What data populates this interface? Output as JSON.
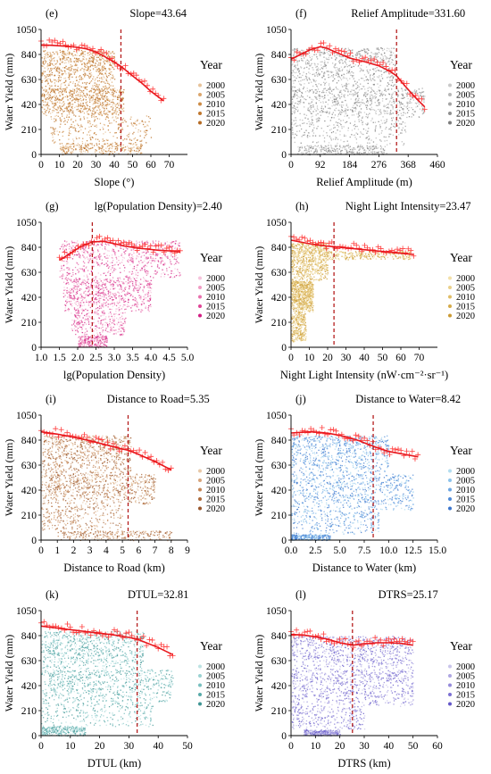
{
  "chart_data": [
    {
      "type": "scatter",
      "panel_label": "(e)",
      "title": "Slope=43.64",
      "xlabel": "Slope (°)",
      "ylabel": "Water Yield (mm)",
      "legend_title": "Year",
      "legend_items": [
        "2000",
        "2005",
        "2010",
        "2015",
        "2020"
      ],
      "legend_colors": [
        "#e7c39a",
        "#dba66c",
        "#cc8b45",
        "#c0772e",
        "#b56a22"
      ],
      "xlim": [
        0,
        80
      ],
      "ylim": [
        0,
        1050
      ],
      "xticks": [
        "0",
        "10",
        "20",
        "30",
        "40",
        "50",
        "60",
        "70"
      ],
      "xtick_values": [
        0,
        10,
        20,
        30,
        40,
        50,
        60,
        70
      ],
      "yticks": [
        "0",
        "210",
        "420",
        "630",
        "840",
        "1050"
      ],
      "threshold": 43.64,
      "fit_x": [
        0,
        5,
        10,
        15,
        20,
        25,
        30,
        35,
        40,
        43.64,
        50,
        55,
        60,
        67
      ],
      "fit_y": [
        920,
        917,
        913,
        908,
        900,
        886,
        860,
        820,
        775,
        740,
        660,
        600,
        530,
        450
      ],
      "cloud": [
        {
          "x": [
            0,
            40
          ],
          "y": [
            560,
            880
          ]
        },
        {
          "x": [
            0,
            45
          ],
          "y": [
            330,
            560
          ]
        },
        {
          "x": [
            5,
            60
          ],
          "y": [
            100,
            330
          ]
        },
        {
          "x": [
            10,
            55
          ],
          "y": [
            0,
            100
          ]
        }
      ],
      "upper_x": [
        0,
        67
      ],
      "upper_y": [
        0,
        0
      ]
    },
    {
      "type": "scatter",
      "panel_label": "(f)",
      "title": "Relief Amplitude=331.60",
      "xlabel": "Relief Amplitude (m)",
      "ylabel": "Water Yield (mm)",
      "legend_title": "Year",
      "legend_items": [
        "2000",
        "2005",
        "2010",
        "2015",
        "2020"
      ],
      "legend_colors": [
        "#c9c9c9",
        "#b7b7b7",
        "#a3a3a3",
        "#8f8f8f",
        "#7c7c7c"
      ],
      "xlim": [
        0,
        460
      ],
      "ylim": [
        0,
        1050
      ],
      "xticks": [
        "0",
        "92",
        "184",
        "276",
        "368",
        "460"
      ],
      "xtick_values": [
        0,
        92,
        184,
        276,
        368,
        460
      ],
      "yticks": [
        "0",
        "210",
        "420",
        "630",
        "840",
        "1050"
      ],
      "threshold": 331.6,
      "fit_x": [
        0,
        30,
        60,
        92,
        110,
        140,
        184,
        230,
        276,
        310,
        331.6,
        360,
        390,
        420
      ],
      "fit_y": [
        800,
        840,
        880,
        905,
        895,
        860,
        810,
        780,
        745,
        700,
        660,
        570,
        480,
        400
      ],
      "cloud": [
        {
          "x": [
            0,
            330
          ],
          "y": [
            560,
            900
          ]
        },
        {
          "x": [
            0,
            420
          ],
          "y": [
            300,
            560
          ]
        },
        {
          "x": [
            0,
            360
          ],
          "y": [
            80,
            300
          ]
        },
        {
          "x": [
            20,
            300
          ],
          "y": [
            0,
            80
          ]
        }
      ]
    },
    {
      "type": "scatter",
      "panel_label": "(g)",
      "title": "lg(Population Density)=2.40",
      "xlabel": "lg(Population Density)",
      "ylabel": "Water Yield (mm)",
      "legend_title": "Year",
      "legend_items": [
        "2000",
        "2005",
        "2010",
        "2015",
        "2020"
      ],
      "legend_colors": [
        "#f6c3dc",
        "#f09bc4",
        "#e870ad",
        "#df4596",
        "#d11c82"
      ],
      "xlim": [
        1.0,
        5.0
      ],
      "ylim": [
        0,
        1050
      ],
      "xticks": [
        "1.0",
        "1.5",
        "2.0",
        "2.5",
        "3.0",
        "3.5",
        "4.0",
        "4.5",
        "5.0"
      ],
      "xtick_values": [
        1.0,
        1.5,
        2.0,
        2.5,
        3.0,
        3.5,
        4.0,
        4.5,
        5.0
      ],
      "yticks": [
        "0",
        "210",
        "420",
        "630",
        "840",
        "1050"
      ],
      "threshold": 2.4,
      "fit_x": [
        1.5,
        1.8,
        2.1,
        2.4,
        2.7,
        3.0,
        3.3,
        3.6,
        3.9,
        4.2,
        4.5,
        4.8
      ],
      "fit_y": [
        730,
        790,
        850,
        885,
        890,
        870,
        850,
        835,
        825,
        815,
        810,
        800
      ],
      "cloud": [
        {
          "x": [
            1.5,
            4.8
          ],
          "y": [
            580,
            900
          ]
        },
        {
          "x": [
            1.6,
            4.0
          ],
          "y": [
            300,
            580
          ]
        },
        {
          "x": [
            1.8,
            3.3
          ],
          "y": [
            100,
            300
          ]
        },
        {
          "x": [
            2.0,
            2.8
          ],
          "y": [
            0,
            100
          ]
        }
      ]
    },
    {
      "type": "scatter",
      "panel_label": "(h)",
      "title": "Night Light Intensity=23.47",
      "xlabel": "Night Light Intensity (nW·cm⁻²·sr⁻¹)",
      "ylabel": "Water Yield (mm)",
      "legend_title": "Year",
      "legend_items": [
        "2000",
        "2005",
        "2010",
        "2015",
        "2020"
      ],
      "legend_colors": [
        "#f3e0a8",
        "#ead08a",
        "#e0bd66",
        "#d5ab49",
        "#cb9a33"
      ],
      "xlim": [
        0,
        80
      ],
      "ylim": [
        0,
        1050
      ],
      "xticks": [
        "0",
        "10",
        "20",
        "30",
        "40",
        "50",
        "60",
        "70"
      ],
      "xtick_values": [
        0,
        10,
        20,
        30,
        40,
        50,
        60,
        70
      ],
      "yticks": [
        "0",
        "210",
        "420",
        "630",
        "840",
        "1050"
      ],
      "threshold": 23.47,
      "fit_x": [
        0,
        5,
        10,
        15,
        20,
        23.47,
        30,
        40,
        50,
        60,
        67
      ],
      "fit_y": [
        900,
        885,
        870,
        858,
        850,
        845,
        835,
        820,
        805,
        790,
        780
      ],
      "cloud": [
        {
          "x": [
            0,
            20
          ],
          "y": [
            560,
            880
          ]
        },
        {
          "x": [
            0,
            12
          ],
          "y": [
            300,
            560
          ]
        },
        {
          "x": [
            0,
            8
          ],
          "y": [
            50,
            300
          ]
        },
        {
          "x": [
            20,
            65
          ],
          "y": [
            740,
            810
          ]
        }
      ]
    },
    {
      "type": "scatter",
      "panel_label": "(i)",
      "title": "Distance to Road=5.35",
      "xlabel": "Distance to Road (km)",
      "ylabel": "Water Yield (mm)",
      "legend_title": "Year",
      "legend_items": [
        "2000",
        "2005",
        "2010",
        "2015",
        "2020"
      ],
      "legend_colors": [
        "#e8c9a8",
        "#d7a57c",
        "#c38556",
        "#ad6a3c",
        "#98552b"
      ],
      "xlim": [
        0,
        9
      ],
      "ylim": [
        0,
        1050
      ],
      "xticks": [
        "0",
        "1",
        "2",
        "3",
        "4",
        "5",
        "6",
        "7",
        "8",
        "9"
      ],
      "xtick_values": [
        0,
        1,
        2,
        3,
        4,
        5,
        6,
        7,
        8,
        9
      ],
      "yticks": [
        "0",
        "210",
        "420",
        "630",
        "840",
        "1050"
      ],
      "threshold": 5.35,
      "fit_x": [
        0,
        1,
        2,
        3,
        4,
        5,
        5.35,
        6,
        7,
        8
      ],
      "fit_y": [
        910,
        890,
        865,
        835,
        800,
        765,
        755,
        720,
        660,
        590
      ],
      "cloud": [
        {
          "x": [
            0,
            5.5
          ],
          "y": [
            560,
            880
          ]
        },
        {
          "x": [
            0,
            7
          ],
          "y": [
            300,
            560
          ]
        },
        {
          "x": [
            0,
            5
          ],
          "y": [
            80,
            300
          ]
        },
        {
          "x": [
            1,
            8
          ],
          "y": [
            0,
            80
          ]
        }
      ]
    },
    {
      "type": "scatter",
      "panel_label": "(j)",
      "title": "Distance to Water=8.42",
      "xlabel": "Distance to Water (km)",
      "ylabel": "Water Yield (mm)",
      "legend_title": "Year",
      "legend_items": [
        "2000",
        "2005",
        "2010",
        "2015",
        "2020"
      ],
      "legend_colors": [
        "#b3ddf0",
        "#8dc3ec",
        "#6da6e3",
        "#4f8ad8",
        "#3a74cc"
      ],
      "xlim": [
        0,
        15
      ],
      "ylim": [
        0,
        1050
      ],
      "xticks": [
        "0.0",
        "2.5",
        "5.0",
        "7.5",
        "10.0",
        "12.5",
        "15.0"
      ],
      "xtick_values": [
        0,
        2.5,
        5.0,
        7.5,
        10.0,
        12.5,
        15.0
      ],
      "yticks": [
        "0",
        "210",
        "420",
        "630",
        "840",
        "1050"
      ],
      "threshold": 8.42,
      "fit_x": [
        0,
        1,
        2,
        3,
        4,
        5,
        6,
        7,
        8,
        8.42,
        9,
        10,
        11,
        12,
        13
      ],
      "fit_y": [
        900,
        905,
        910,
        905,
        895,
        880,
        860,
        835,
        800,
        790,
        770,
        745,
        730,
        715,
        700
      ],
      "cloud": [
        {
          "x": [
            0,
            10
          ],
          "y": [
            560,
            880
          ]
        },
        {
          "x": [
            0,
            12.5
          ],
          "y": [
            250,
            560
          ]
        },
        {
          "x": [
            0,
            9
          ],
          "y": [
            50,
            250
          ]
        },
        {
          "x": [
            0,
            4
          ],
          "y": [
            0,
            50
          ]
        }
      ]
    },
    {
      "type": "scatter",
      "panel_label": "(k)",
      "title": "DTUL=32.81",
      "xlabel": "DTUL (km)",
      "ylabel": "Water Yield (mm)",
      "legend_title": "Year",
      "legend_items": [
        "2000",
        "2005",
        "2010",
        "2015",
        "2020"
      ],
      "legend_colors": [
        "#bde3e3",
        "#9bd2d2",
        "#78bfbf",
        "#58aaa9",
        "#3f9594"
      ],
      "xlim": [
        0,
        50
      ],
      "ylim": [
        0,
        1050
      ],
      "xticks": [
        "0",
        "10",
        "20",
        "30",
        "40",
        "50"
      ],
      "xtick_values": [
        0,
        10,
        20,
        30,
        40,
        50
      ],
      "yticks": [
        "0",
        "210",
        "420",
        "630",
        "840",
        "1050"
      ],
      "threshold": 32.81,
      "fit_x": [
        0,
        5,
        10,
        15,
        20,
        25,
        30,
        32.81,
        35,
        40,
        45
      ],
      "fit_y": [
        920,
        905,
        890,
        875,
        860,
        845,
        825,
        810,
        790,
        740,
        680
      ],
      "cloud": [
        {
          "x": [
            0,
            35
          ],
          "y": [
            560,
            880
          ]
        },
        {
          "x": [
            0,
            45
          ],
          "y": [
            280,
            560
          ]
        },
        {
          "x": [
            0,
            38
          ],
          "y": [
            80,
            280
          ]
        },
        {
          "x": [
            0,
            15
          ],
          "y": [
            0,
            80
          ]
        }
      ]
    },
    {
      "type": "scatter",
      "panel_label": "(l)",
      "title": "DTRS=25.17",
      "xlabel": "DTRS (km)",
      "ylabel": "Water Yield (mm)",
      "legend_title": "Year",
      "legend_items": [
        "2000",
        "2005",
        "2010",
        "2015",
        "2020"
      ],
      "legend_colors": [
        "#c9c4ea",
        "#aea6e2",
        "#958bdb",
        "#7c70d3",
        "#6457c9"
      ],
      "xlim": [
        0,
        60
      ],
      "ylim": [
        0,
        1050
      ],
      "xticks": [
        "0",
        "10",
        "20",
        "30",
        "40",
        "50",
        "60"
      ],
      "xtick_values": [
        0,
        10,
        20,
        30,
        40,
        50,
        60
      ],
      "yticks": [
        "0",
        "210",
        "420",
        "630",
        "840",
        "1050"
      ],
      "threshold": 25.17,
      "fit_x": [
        0,
        5,
        10,
        15,
        20,
        25.17,
        30,
        35,
        40,
        45,
        50
      ],
      "fit_y": [
        850,
        845,
        830,
        810,
        780,
        760,
        770,
        780,
        780,
        775,
        760
      ],
      "cloud": [
        {
          "x": [
            0,
            50
          ],
          "y": [
            560,
            840
          ]
        },
        {
          "x": [
            0,
            50
          ],
          "y": [
            250,
            560
          ]
        },
        {
          "x": [
            0,
            30
          ],
          "y": [
            50,
            250
          ]
        },
        {
          "x": [
            5,
            20
          ],
          "y": [
            0,
            50
          ]
        }
      ]
    }
  ]
}
